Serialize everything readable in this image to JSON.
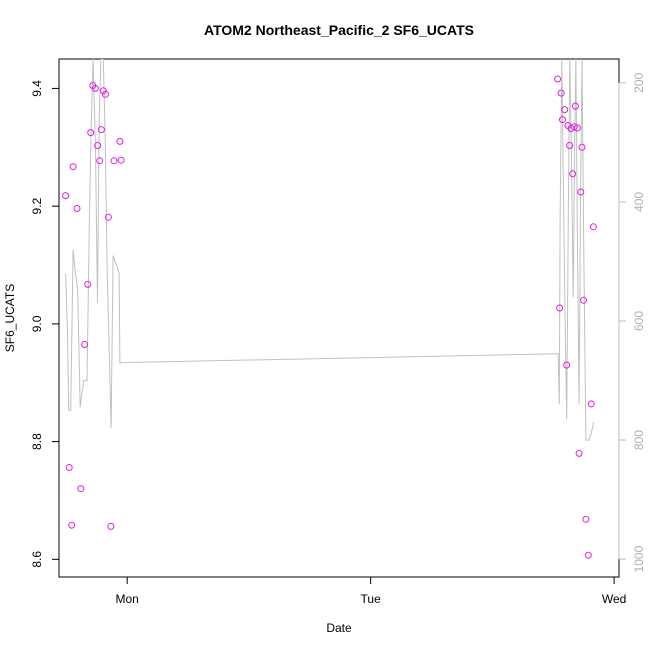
{
  "chart_data": {
    "type": "scatter",
    "title": "ATOM2 Northeast_Pacific_2 SF6_UCATS",
    "xlabel": "Date",
    "ylabel": "SF6_UCATS",
    "xlim": [
      -0.28,
      2.02
    ],
    "ylim": [
      8.57,
      9.45
    ],
    "x_ticks": [
      {
        "value": 0,
        "label": "Mon"
      },
      {
        "value": 1,
        "label": "Tue"
      },
      {
        "value": 2,
        "label": "Wed"
      }
    ],
    "y_ticks": [
      8.6,
      8.8,
      9.0,
      9.2,
      9.4
    ],
    "y_tick_labels": [
      "8.6",
      "8.8",
      "9.0",
      "9.2",
      "9.4"
    ],
    "right_axis": {
      "ylim": [
        1030,
        160
      ],
      "ticks": [
        200,
        400,
        600,
        800,
        1000
      ],
      "tick_labels": [
        "200",
        "400",
        "600",
        "800",
        "1000"
      ],
      "color": "#bbbbbb"
    },
    "points_color": "#e020e0",
    "line_color": "#c0c0c0",
    "points": [
      {
        "x": -0.253,
        "y": 9.218
      },
      {
        "x": -0.238,
        "y": 8.756
      },
      {
        "x": -0.228,
        "y": 8.658
      },
      {
        "x": -0.222,
        "y": 9.267
      },
      {
        "x": -0.206,
        "y": 9.196
      },
      {
        "x": -0.19,
        "y": 8.72
      },
      {
        "x": -0.175,
        "y": 8.965
      },
      {
        "x": -0.162,
        "y": 9.067
      },
      {
        "x": -0.15,
        "y": 9.325
      },
      {
        "x": -0.141,
        "y": 9.405
      },
      {
        "x": -0.131,
        "y": 9.4
      },
      {
        "x": -0.121,
        "y": 9.303
      },
      {
        "x": -0.113,
        "y": 9.277
      },
      {
        "x": -0.106,
        "y": 9.33
      },
      {
        "x": -0.098,
        "y": 9.396
      },
      {
        "x": -0.089,
        "y": 9.39
      },
      {
        "x": -0.077,
        "y": 9.181
      },
      {
        "x": -0.067,
        "y": 8.656
      },
      {
        "x": -0.054,
        "y": 9.277
      },
      {
        "x": -0.03,
        "y": 9.31
      },
      {
        "x": -0.025,
        "y": 9.278
      },
      {
        "x": 1.768,
        "y": 9.416
      },
      {
        "x": 1.776,
        "y": 9.027
      },
      {
        "x": 1.782,
        "y": 9.392
      },
      {
        "x": 1.788,
        "y": 9.347
      },
      {
        "x": 1.797,
        "y": 9.364
      },
      {
        "x": 1.805,
        "y": 8.93
      },
      {
        "x": 1.81,
        "y": 9.337
      },
      {
        "x": 1.817,
        "y": 9.303
      },
      {
        "x": 1.823,
        "y": 9.332
      },
      {
        "x": 1.83,
        "y": 9.255
      },
      {
        "x": 1.836,
        "y": 9.335
      },
      {
        "x": 1.841,
        "y": 9.37
      },
      {
        "x": 1.849,
        "y": 9.333
      },
      {
        "x": 1.856,
        "y": 8.78
      },
      {
        "x": 1.863,
        "y": 9.224
      },
      {
        "x": 1.868,
        "y": 9.3
      },
      {
        "x": 1.874,
        "y": 9.04
      },
      {
        "x": 1.884,
        "y": 8.668
      },
      {
        "x": 1.894,
        "y": 8.607
      },
      {
        "x": 1.906,
        "y": 8.864
      },
      {
        "x": 1.915,
        "y": 9.165
      }
    ],
    "line": [
      {
        "x": -0.253,
        "y": 520
      },
      {
        "x": -0.245,
        "y": 620
      },
      {
        "x": -0.24,
        "y": 750
      },
      {
        "x": -0.232,
        "y": 750
      },
      {
        "x": -0.222,
        "y": 480
      },
      {
        "x": -0.215,
        "y": 510
      },
      {
        "x": -0.203,
        "y": 550
      },
      {
        "x": -0.193,
        "y": 745
      },
      {
        "x": -0.185,
        "y": 720
      },
      {
        "x": -0.178,
        "y": 700
      },
      {
        "x": -0.165,
        "y": 700
      },
      {
        "x": -0.155,
        "y": 430
      },
      {
        "x": -0.148,
        "y": 280
      },
      {
        "x": -0.14,
        "y": 160
      },
      {
        "x": -0.13,
        "y": 310
      },
      {
        "x": -0.122,
        "y": 570
      },
      {
        "x": -0.115,
        "y": 260
      },
      {
        "x": -0.108,
        "y": 160
      },
      {
        "x": -0.098,
        "y": 160
      },
      {
        "x": -0.09,
        "y": 300
      },
      {
        "x": -0.082,
        "y": 520
      },
      {
        "x": -0.074,
        "y": 650
      },
      {
        "x": -0.066,
        "y": 780
      },
      {
        "x": -0.058,
        "y": 490
      },
      {
        "x": -0.05,
        "y": 500
      },
      {
        "x": -0.04,
        "y": 510
      },
      {
        "x": -0.033,
        "y": 520
      },
      {
        "x": -0.03,
        "y": 670
      },
      {
        "x": 1.77,
        "y": 655
      },
      {
        "x": 1.775,
        "y": 740
      },
      {
        "x": 1.778,
        "y": 430
      },
      {
        "x": 1.785,
        "y": 160
      },
      {
        "x": 1.792,
        "y": 390
      },
      {
        "x": 1.799,
        "y": 610
      },
      {
        "x": 1.805,
        "y": 765
      },
      {
        "x": 1.812,
        "y": 400
      },
      {
        "x": 1.818,
        "y": 160
      },
      {
        "x": 1.825,
        "y": 330
      },
      {
        "x": 1.832,
        "y": 560
      },
      {
        "x": 1.838,
        "y": 300
      },
      {
        "x": 1.843,
        "y": 160
      },
      {
        "x": 1.85,
        "y": 500
      },
      {
        "x": 1.856,
        "y": 740
      },
      {
        "x": 1.862,
        "y": 400
      },
      {
        "x": 1.868,
        "y": 160
      },
      {
        "x": 1.876,
        "y": 500
      },
      {
        "x": 1.884,
        "y": 800
      },
      {
        "x": 1.896,
        "y": 800
      },
      {
        "x": 1.905,
        "y": 790
      },
      {
        "x": 1.916,
        "y": 770
      }
    ]
  }
}
